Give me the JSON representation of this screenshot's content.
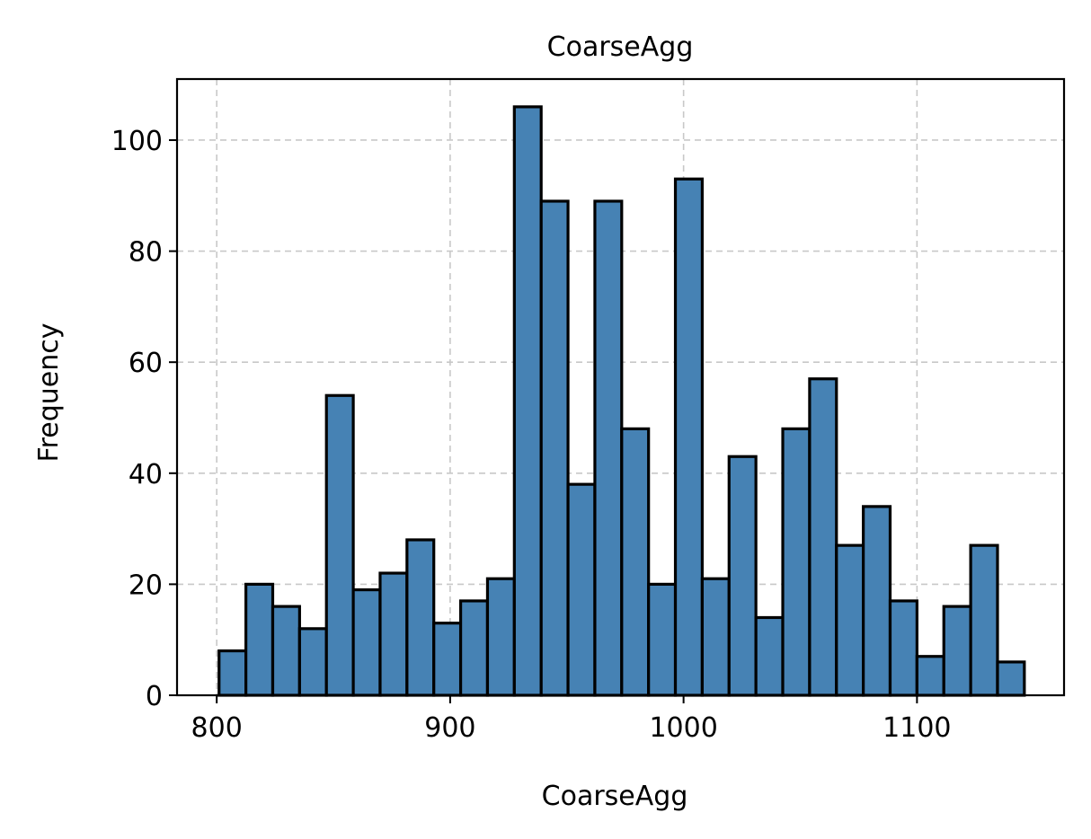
{
  "chart_data": {
    "type": "bar",
    "subtype": "histogram",
    "title": "CoarseAgg",
    "xlabel": "CoarseAgg",
    "ylabel": "Frequency",
    "bin_start": 801.0,
    "bin_width": 11.5,
    "values": [
      8,
      20,
      16,
      12,
      54,
      19,
      22,
      28,
      13,
      17,
      21,
      106,
      89,
      38,
      89,
      48,
      20,
      93,
      21,
      43,
      14,
      48,
      57,
      27,
      34,
      17,
      7,
      16,
      27,
      6
    ],
    "xlim": [
      783,
      1163
    ],
    "ylim": [
      0,
      111
    ],
    "xticks": [
      800,
      900,
      1000,
      1100
    ],
    "yticks": [
      0,
      20,
      40,
      60,
      80,
      100
    ],
    "grid": true,
    "bar_color": "#4682b4",
    "edge_color": "#000000"
  }
}
